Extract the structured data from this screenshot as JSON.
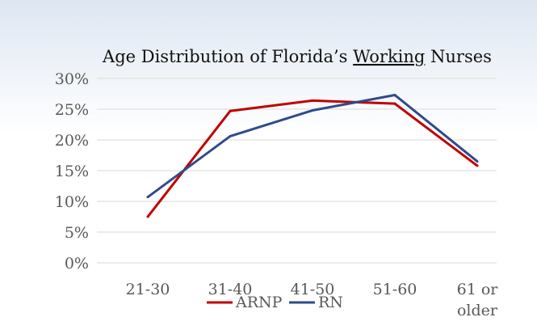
{
  "chart_data": {
    "type": "line",
    "title_parts": [
      "Age Distribution of Florida’s ",
      "Working",
      " Nurses"
    ],
    "categories": [
      "21-30",
      "31-40",
      "41-50",
      "51-60",
      "61 or older"
    ],
    "category_lines": [
      [
        "21-30"
      ],
      [
        "31-40"
      ],
      [
        "41-50"
      ],
      [
        "51-60"
      ],
      [
        "61 or",
        "older"
      ]
    ],
    "ylim": [
      0,
      30
    ],
    "y_ticks": [
      "0%",
      "5%",
      "10%",
      "15%",
      "20%",
      "25%",
      "30%"
    ],
    "y_tick_values": [
      0,
      5,
      10,
      15,
      20,
      25,
      30
    ],
    "grid": true,
    "legend_position": "bottom",
    "series": [
      {
        "name": "ARNP",
        "color": "#c00000",
        "values": [
          7.5,
          24.7,
          26.4,
          25.9,
          15.8
        ]
      },
      {
        "name": "RN",
        "color": "#2f4b8c",
        "values": [
          10.7,
          20.6,
          24.8,
          27.3,
          16.5
        ]
      }
    ],
    "colors": {
      "gridline": "#d9d9d9",
      "background_top": "#dde6f2",
      "text": "#595959"
    }
  }
}
